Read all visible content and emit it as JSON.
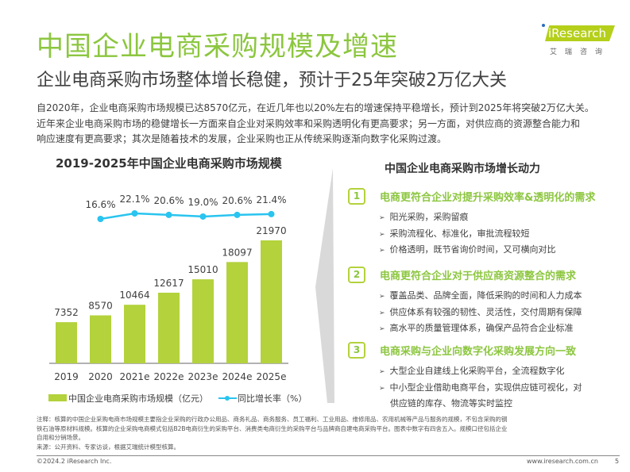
{
  "title": "中国企业电商采购规模及增速",
  "subtitle": "企业电商采购市场整体增长稳健，预计于25年突破2万亿大关",
  "logo": {
    "text": "iResearch",
    "cn": "艾瑞咨询"
  },
  "paragraph": [
    "自2020年，企业电商采购市场规模已达8570亿元，在近几年也以20%左右的增速保持平稳增长，预计到2025年将突破2万亿大关。",
    "近年来企业电商采购市场的稳健增长一方面来自企业对采购效率和采购透明化有更高要求；另一方面，对供应商的资源整合能力和",
    "响应速度有更高要求；其次是随着技术的发展，企业采购也正从传统采购逐渐向数字化采购过渡。"
  ],
  "chart_data": {
    "type": "bar+line",
    "title": "2019-2025年中国企业电商采购市场规模",
    "categories": [
      "2019",
      "2020",
      "2021e",
      "2022e",
      "2023e",
      "2024e",
      "2025e"
    ],
    "series": [
      {
        "name": "中国企业电商采购市场规模（亿元）",
        "type": "bar",
        "color": "#b3d23c",
        "values": [
          7352,
          8570,
          10464,
          12617,
          15010,
          18097,
          21970
        ],
        "labels": [
          "7352",
          "8570",
          "10464",
          "12617",
          "15010",
          "18097",
          "21970"
        ]
      },
      {
        "name": "同比增长率（%）",
        "type": "line",
        "color": "#29c4ef",
        "values": [
          16.6,
          22.1,
          20.6,
          19.0,
          20.6,
          21.4
        ],
        "x": [
          "2020",
          "2021e",
          "2022e",
          "2023e",
          "2024e",
          "2025e"
        ],
        "labels": [
          "16.6%",
          "22.1%",
          "20.6%",
          "19.0%",
          "20.6%",
          "21.4%"
        ]
      }
    ],
    "legend": "bottom"
  },
  "panel": {
    "title": "中国企业电商采购市场增长动力",
    "items": [
      {
        "num": "1",
        "heading": "电商更符合企业对提升采购效率&透明化的需求",
        "bullets": [
          "阳光采购，采购留痕",
          "采购流程化、标准化，审批流程较短",
          "价格透明，既节省询价时间，又可横向对比"
        ]
      },
      {
        "num": "2",
        "heading": "电商更符合企业对于供应商资源整合的需求",
        "bullets": [
          "覆盖品类、品牌全面，降低采购的时间和人力成本",
          "供应体系有较强的韧性、灵活性，交付周期有保障",
          "高水平的质量管理体系，确保产品符合企业标准"
        ]
      },
      {
        "num": "3",
        "heading": "电商采购与企业向数字化采购发展方向一致",
        "bullets": [
          "大型企业自建线上化采购平台，全流程数字化",
          "中小型企业借助电商平台，实现供应链可视化，对",
          "供应链的库存、物流等实时监控"
        ]
      }
    ]
  },
  "notes": [
    "注释：核算的中国企业采购电商市场规模主要指企业采购的行政办公用品、商务礼品、商务服务、员工福利、工业用品、维修用品、农用机械等产品与服务的规模，不包含采购的钢",
    "铁石油等原材料规模。核算的企业采购电商模式包括B2B电商衍生的采购平台、消费类电商衍生的采购平台与品牌商自建电商采购平台。图表中数字有四舍五入。规模口径包括企业",
    "自用和分销场景。",
    "来源：公开资料、专家访谈，根据艾瑞统计模型核算。"
  ],
  "footer": {
    "copyright": "©2024.2 iResearch Inc.",
    "url": "www.iresearch.com.cn",
    "page": "5"
  }
}
